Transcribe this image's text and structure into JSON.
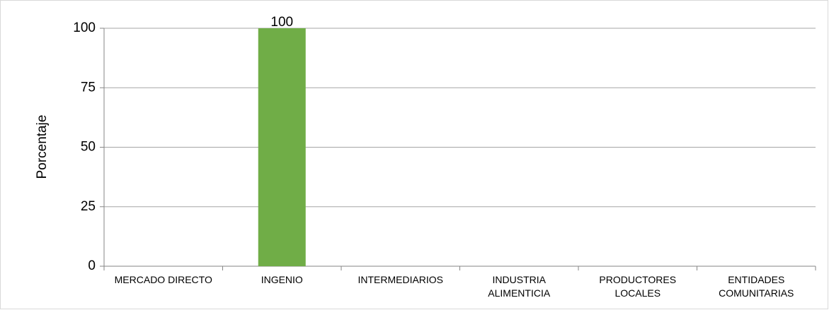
{
  "chart_data": {
    "type": "bar",
    "ylabel": "Porcentaje",
    "categories": [
      "MERCADO DIRECTO",
      "INGENIO",
      "INTERMEDIARIOS",
      "INDUSTRIA ALIMENTICIA",
      "PRODUCTORES LOCALES",
      "ENTIDADES COMUNITARIAS"
    ],
    "values": [
      0,
      100,
      0,
      0,
      0,
      0
    ],
    "color": "#70ad47",
    "ylim": [
      0,
      100
    ],
    "yticks": [
      0,
      25,
      50,
      75,
      100
    ],
    "grid": true
  }
}
